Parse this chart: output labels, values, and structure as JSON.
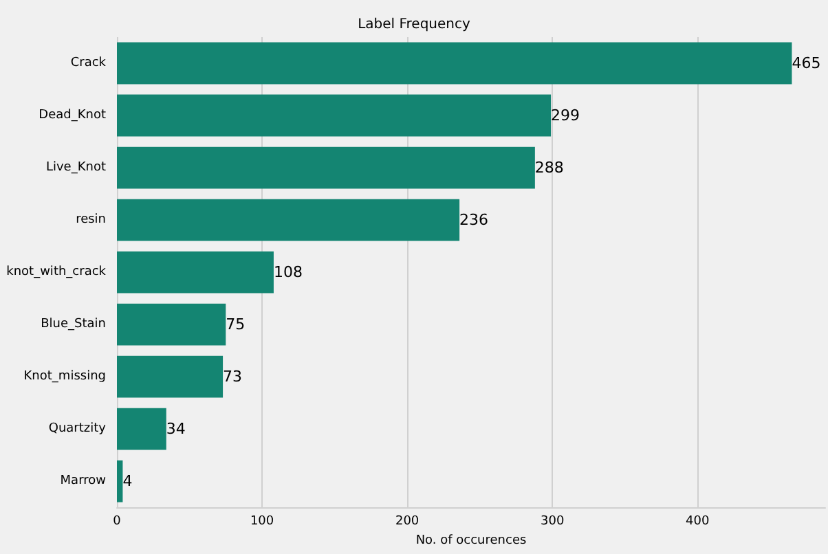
{
  "chart_data": {
    "type": "bar",
    "orientation": "horizontal",
    "title": "Label Frequency",
    "xlabel": "No. of occurences",
    "categories": [
      "Crack",
      "Dead_Knot",
      "Live_Knot",
      "resin",
      "knot_with_crack",
      "Blue_Stain",
      "Knot_missing",
      "Quartzity",
      "Marrow"
    ],
    "values": [
      465,
      299,
      288,
      236,
      108,
      75,
      73,
      34,
      4
    ],
    "color": "#148572",
    "xlim": [
      0,
      488
    ],
    "xticks": [
      0,
      100,
      200,
      300,
      400
    ],
    "grid": "x",
    "data_labels": true
  }
}
